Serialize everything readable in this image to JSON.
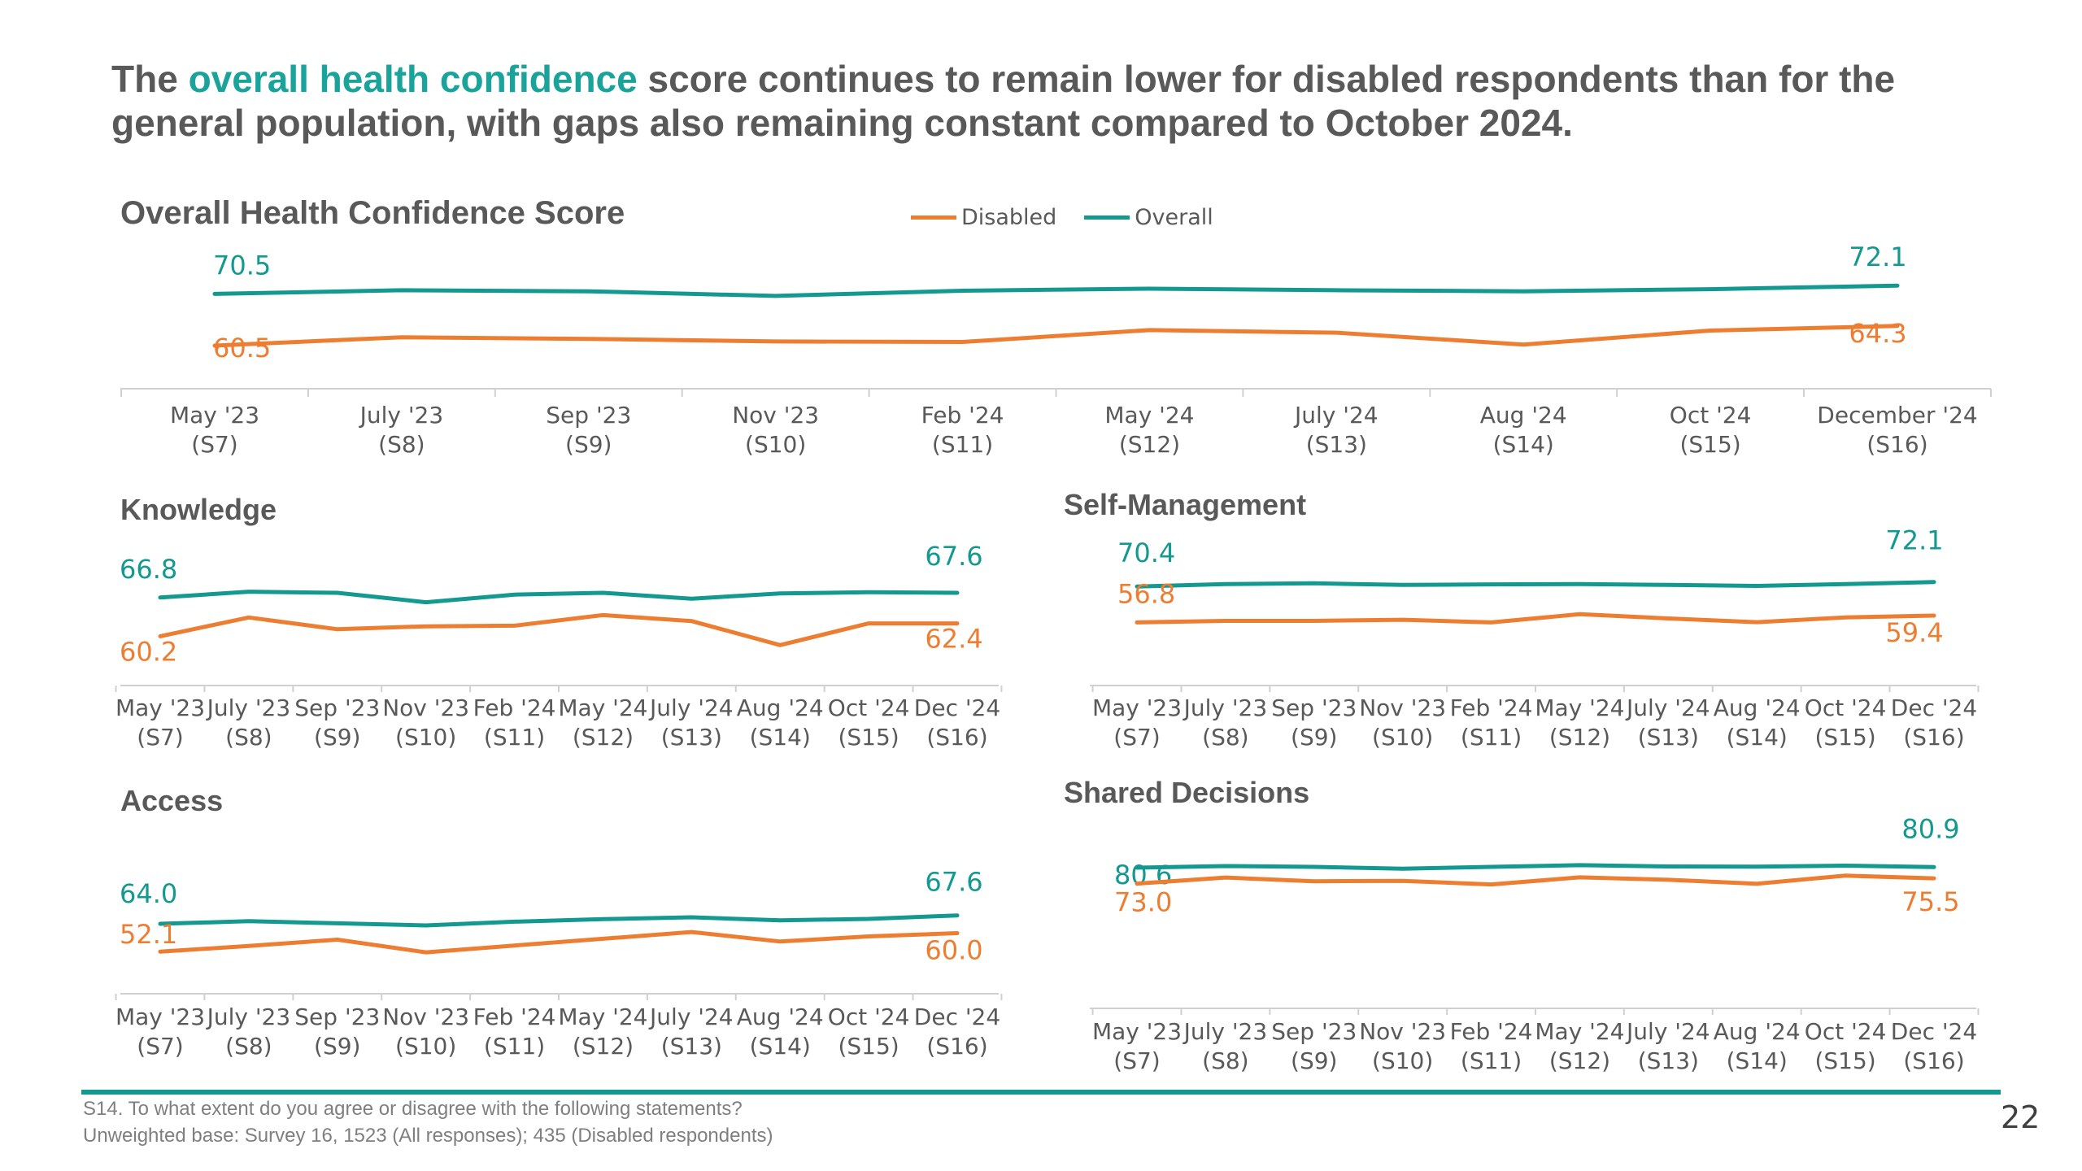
{
  "headline": {
    "pre": "The ",
    "highlight": "overall health confidence",
    "post": " score continues to remain lower for disabled respondents than for the general population, with gaps also remaining constant compared to October 2024."
  },
  "colors": {
    "disabled": "#ed7d31",
    "overall": "#13998f",
    "axis": "#d0d0d0",
    "label": "#595959"
  },
  "legend": {
    "disabled": "Disabled",
    "overall": "Overall"
  },
  "footnote": {
    "line1": "S14. To what extent do you agree or disagree with the following statements?",
    "line2": "Unweighted base: Survey 16, 1523 (All responses); 435 (Disabled respondents)"
  },
  "page_number": "22",
  "chart_data": [
    {
      "id": "overall",
      "type": "line",
      "title": "Overall Health Confidence Score",
      "categories": [
        [
          "May '23",
          "(S7)"
        ],
        [
          "July '23",
          "(S8)"
        ],
        [
          "Sep '23",
          "(S9)"
        ],
        [
          "Nov '23",
          "(S10)"
        ],
        [
          "Feb '24",
          "(S11)"
        ],
        [
          "May '24",
          "(S12)"
        ],
        [
          "July '24",
          "(S13)"
        ],
        [
          "Aug '24",
          "(S14)"
        ],
        [
          "Oct '24",
          "(S15)"
        ],
        [
          "December '24",
          "(S16)"
        ]
      ],
      "series": [
        {
          "name": "Overall",
          "key": "overall",
          "values": [
            70.5,
            71.2,
            71.0,
            70.1,
            71.1,
            71.5,
            71.2,
            71.0,
            71.4,
            72.1
          ],
          "labels": {
            "0": "70.5",
            "9": "72.1"
          }
        },
        {
          "name": "Disabled",
          "key": "disabled",
          "values": [
            60.5,
            62.1,
            61.8,
            61.3,
            61.2,
            63.5,
            63.0,
            60.7,
            63.4,
            64.3
          ],
          "labels": {
            "0": "60.5",
            "9": "64.3"
          }
        }
      ],
      "ylim": [
        55,
        77
      ]
    },
    {
      "id": "knowledge",
      "type": "line",
      "title": "Knowledge",
      "categories": [
        [
          "May '23",
          "(S7)"
        ],
        [
          "July '23",
          "(S8)"
        ],
        [
          "Sep '23",
          "(S9)"
        ],
        [
          "Nov '23",
          "(S10)"
        ],
        [
          "Feb '24",
          "(S11)"
        ],
        [
          "May '24",
          "(S12)"
        ],
        [
          "July '24",
          "(S13)"
        ],
        [
          "Aug '24",
          "(S14)"
        ],
        [
          "Oct '24",
          "(S15)"
        ],
        [
          "Dec '24",
          "(S16)"
        ]
      ],
      "series": [
        {
          "name": "Overall",
          "key": "overall",
          "values": [
            66.8,
            67.8,
            67.6,
            66.0,
            67.3,
            67.6,
            66.6,
            67.5,
            67.7,
            67.6
          ],
          "labels": {
            "0": "66.8",
            "9": "67.6"
          }
        },
        {
          "name": "Disabled",
          "key": "disabled",
          "values": [
            60.2,
            63.4,
            61.4,
            61.9,
            62.0,
            63.8,
            62.8,
            58.7,
            62.4,
            62.4
          ],
          "labels": {
            "0": "60.2",
            "9": "62.4"
          }
        }
      ],
      "ylim": [
        55,
        73
      ]
    },
    {
      "id": "self-management",
      "type": "line",
      "title": "Self-Management",
      "categories": [
        [
          "May '23",
          "(S7)"
        ],
        [
          "July '23",
          "(S8)"
        ],
        [
          "Sep '23",
          "(S9)"
        ],
        [
          "Nov '23",
          "(S10)"
        ],
        [
          "Feb '24",
          "(S11)"
        ],
        [
          "May '24",
          "(S12)"
        ],
        [
          "July '24",
          "(S13)"
        ],
        [
          "Aug '24",
          "(S14)"
        ],
        [
          "Oct '24",
          "(S15)"
        ],
        [
          "Dec '24",
          "(S16)"
        ]
      ],
      "series": [
        {
          "name": "Overall",
          "key": "overall",
          "values": [
            70.4,
            71.3,
            71.6,
            71.0,
            71.2,
            71.3,
            71.0,
            70.6,
            71.3,
            72.1
          ],
          "labels": {
            "0": "70.4",
            "9": "72.1"
          }
        },
        {
          "name": "Disabled",
          "key": "disabled",
          "values": [
            56.8,
            57.4,
            57.4,
            57.8,
            56.8,
            59.9,
            58.3,
            56.9,
            58.7,
            59.4
          ],
          "labels": {
            "0": "56.8",
            "9": "59.4"
          }
        }
      ],
      "ylim": [
        40,
        80
      ]
    },
    {
      "id": "access",
      "type": "line",
      "title": "Access",
      "categories": [
        [
          "May '23",
          "(S7)"
        ],
        [
          "July '23",
          "(S8)"
        ],
        [
          "Sep '23",
          "(S9)"
        ],
        [
          "Nov '23",
          "(S10)"
        ],
        [
          "Feb '24",
          "(S11)"
        ],
        [
          "May '24",
          "(S12)"
        ],
        [
          "July '24",
          "(S13)"
        ],
        [
          "Aug '24",
          "(S14)"
        ],
        [
          "Oct '24",
          "(S15)"
        ],
        [
          "Dec '24",
          "(S16)"
        ]
      ],
      "series": [
        {
          "name": "Overall",
          "key": "overall",
          "values": [
            64.0,
            65.1,
            64.2,
            63.3,
            64.9,
            66.0,
            66.8,
            65.5,
            66.1,
            67.6
          ],
          "labels": {
            "0": "64.0",
            "9": "67.6"
          }
        },
        {
          "name": "Disabled",
          "key": "disabled",
          "values": [
            52.1,
            54.5,
            57.2,
            51.8,
            54.7,
            57.6,
            60.5,
            56.4,
            58.6,
            60.0
          ],
          "labels": {
            "0": "52.1",
            "9": "60.0"
          }
        }
      ],
      "ylim": [
        40,
        80
      ]
    },
    {
      "id": "shared-decisions",
      "type": "line",
      "title": "Shared Decisions",
      "categories": [
        [
          "May '23",
          "(S7)"
        ],
        [
          "July '23",
          "(S8)"
        ],
        [
          "Sep '23",
          "(S9)"
        ],
        [
          "Nov '23",
          "(S10)"
        ],
        [
          "Feb '24",
          "(S11)"
        ],
        [
          "May '24",
          "(S12)"
        ],
        [
          "July '24",
          "(S13)"
        ],
        [
          "Aug '24",
          "(S14)"
        ],
        [
          "Oct '24",
          "(S15)"
        ],
        [
          "Dec '24",
          "(S16)"
        ]
      ],
      "series": [
        {
          "name": "Overall",
          "key": "overall",
          "values": [
            80.6,
            81.4,
            81.0,
            80.1,
            81.0,
            81.8,
            81.2,
            81.1,
            81.6,
            80.9
          ],
          "labels": {
            "0": "80.6",
            "9": "80.9"
          }
        },
        {
          "name": "Disabled",
          "key": "disabled",
          "values": [
            73.0,
            75.9,
            74.1,
            74.3,
            72.6,
            76.0,
            74.8,
            72.9,
            76.8,
            75.5
          ],
          "labels": {
            "0": "73.0",
            "9": "75.5"
          }
        }
      ],
      "ylim": [
        60,
        95
      ]
    }
  ]
}
